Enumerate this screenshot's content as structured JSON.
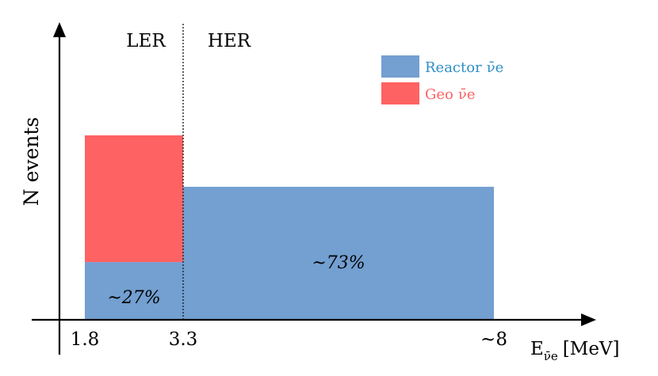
{
  "chart_data": {
    "type": "bar",
    "title": "",
    "xlabel": "E",
    "xlabel_sub": "ν̄e",
    "xlabel_unit": "[MeV]",
    "ylabel": "N events",
    "x_ticks": [
      {
        "value": 1.8,
        "label": "1.8"
      },
      {
        "value": 3.3,
        "label": "3.3"
      },
      {
        "value": 8,
        "label": "~8"
      }
    ],
    "regions": [
      {
        "label": "LER",
        "from": 1.8,
        "to": 3.3
      },
      {
        "label": "HER",
        "from": 3.3,
        "to": 8
      }
    ],
    "divider_x": 3.3,
    "ylim": [
      0,
      1
    ],
    "series": [
      {
        "name": "Reactor",
        "symbol": "ν̄e",
        "color": "#739fd1",
        "bins": [
          {
            "from": 1.8,
            "to": 3.3,
            "base": 0,
            "top": 0.31
          },
          {
            "from": 3.3,
            "to": 8,
            "base": 0,
            "top": 0.72
          }
        ]
      },
      {
        "name": "Geo",
        "symbol": "ν̄e",
        "color": "#ff6262",
        "bins": [
          {
            "from": 1.8,
            "to": 3.3,
            "base": 0.31,
            "top": 1.0
          }
        ]
      }
    ],
    "annotations": [
      {
        "text": "~27%",
        "x": 2.55,
        "y": 0.12
      },
      {
        "text": "~73%",
        "x": 5.65,
        "y": 0.31
      }
    ],
    "legend_position": "top-right",
    "grid": false
  }
}
